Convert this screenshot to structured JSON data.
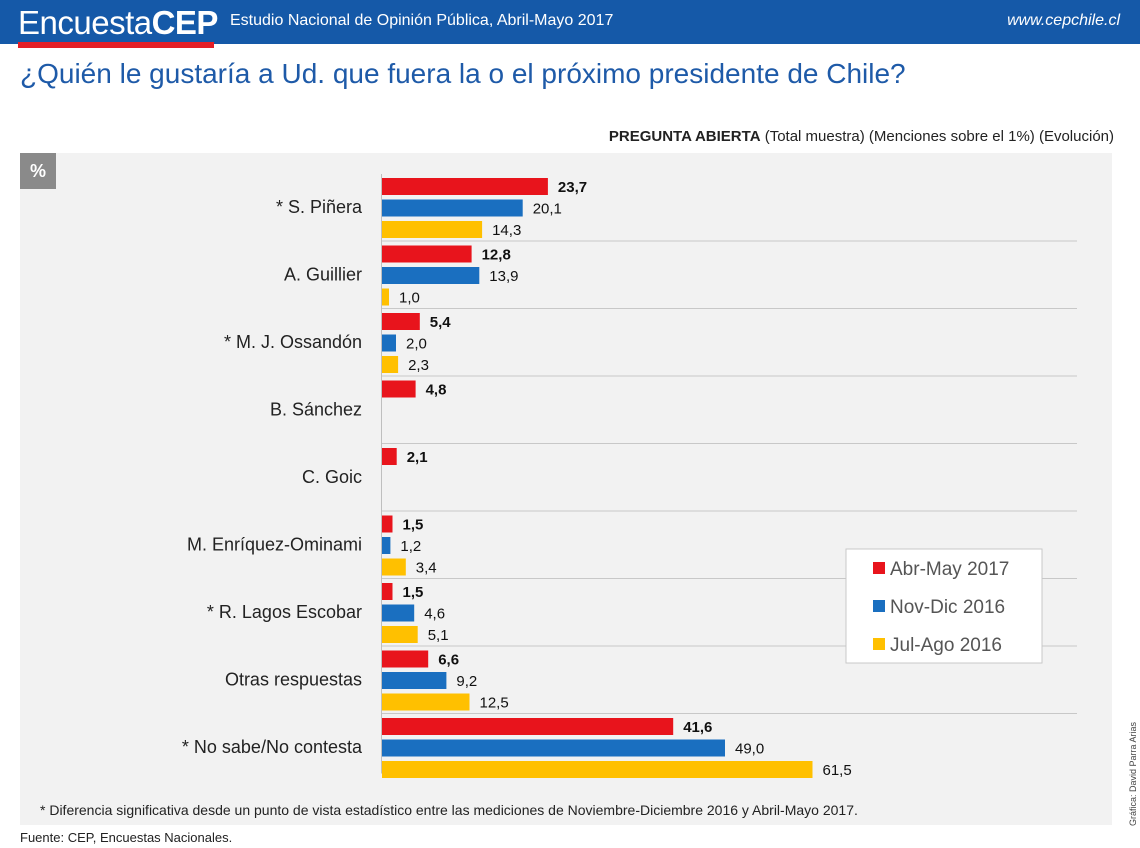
{
  "header": {
    "brand_light": "Encuesta",
    "brand_bold": "CEP",
    "study": "Estudio Nacional de Opinión Pública, Abril-Mayo 2017",
    "website": "www.cepchile.cl",
    "colors": {
      "bar": "#1559a8",
      "brand_accent": "#e41e26"
    }
  },
  "question": "¿Quién le gustaría a Ud. que fuera la o el próximo presidente de Chile?",
  "subtitle": {
    "bold": "PREGUNTA ABIERTA",
    "rest": " (Total muestra) (Menciones sobre el 1%) (Evolución)"
  },
  "unit_badge": "%",
  "chart_data": {
    "type": "bar",
    "orientation": "horizontal",
    "categories": [
      "* S. Piñera",
      "A. Guillier",
      "* M. J. Ossandón",
      "B. Sánchez",
      "C. Goic",
      "M. Enríquez-Ominami",
      "* R. Lagos Escobar",
      "Otras respuestas",
      "* No sabe/No contesta"
    ],
    "series": [
      {
        "name": "Abr-May 2017",
        "color": "#e8141c",
        "bold_labels": true,
        "values": [
          23.7,
          12.8,
          5.4,
          4.8,
          2.1,
          1.5,
          1.5,
          6.6,
          41.6
        ],
        "labels": [
          "23,7",
          "12,8",
          "5,4",
          "4,8",
          "2,1",
          "1,5",
          "1,5",
          "6,6",
          "41,6"
        ]
      },
      {
        "name": "Nov-Dic 2016",
        "color": "#1a6fc0",
        "bold_labels": false,
        "values": [
          20.1,
          13.9,
          2.0,
          null,
          null,
          1.2,
          4.6,
          9.2,
          49.0
        ],
        "labels": [
          "20,1",
          "13,9",
          "2,0",
          "",
          "",
          "1,2",
          "4,6",
          "9,2",
          "49,0"
        ]
      },
      {
        "name": "Jul-Ago 2016",
        "color": "#ffc000",
        "bold_labels": false,
        "values": [
          14.3,
          1.0,
          2.3,
          null,
          null,
          3.4,
          5.1,
          12.5,
          61.5
        ],
        "labels": [
          "14,3",
          "1,0",
          "2,3",
          "",
          "",
          "3,4",
          "5,1",
          "12,5",
          "61,5"
        ]
      }
    ],
    "legend_position": "right-lower",
    "grid": false,
    "xlim": [
      0,
      100
    ]
  },
  "footnote": "* Diferencia significativa desde un punto de vista estadístico entre las mediciones de Noviembre-Diciembre 2016 y Abril-Mayo 2017.",
  "source": "Fuente: CEP, Encuestas Nacionales.",
  "credit": "Gráfica: David Parra Arias"
}
